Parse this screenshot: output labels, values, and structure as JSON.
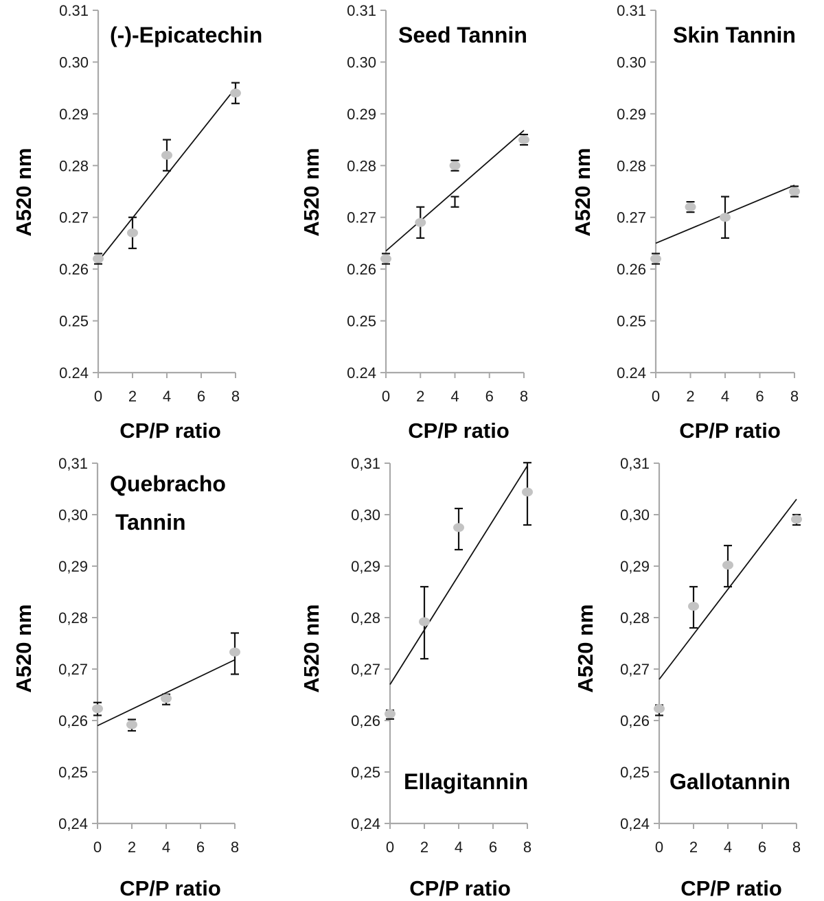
{
  "chart_data": [
    {
      "type": "scatter",
      "title_lines": [
        "(-)-Epicatechin"
      ],
      "xlabel": "CP/P ratio",
      "ylabel": "A520 nm",
      "x_tick_labels": [
        "0",
        "2",
        "4",
        "6",
        "8"
      ],
      "y_tick_labels": [
        "0.24",
        "0.25",
        "0.26",
        "0.27",
        "0.28",
        "0.29",
        "0.30",
        "0.31"
      ],
      "ylim": [
        0.24,
        0.31
      ],
      "xlim": [
        0,
        8
      ],
      "points": [
        {
          "x": 0,
          "y": 0.262,
          "err_low": 0.001,
          "err_high": 0.001
        },
        {
          "x": 2,
          "y": 0.267,
          "err_low": 0.003,
          "err_high": 0.003
        },
        {
          "x": 4,
          "y": 0.282,
          "err_low": 0.003,
          "err_high": 0.003
        },
        {
          "x": 8,
          "y": 0.294,
          "err_low": 0.002,
          "err_high": 0.002
        }
      ],
      "trendline": {
        "x": [
          0,
          8
        ],
        "y": [
          0.2615,
          0.295
        ]
      }
    },
    {
      "type": "scatter",
      "title_lines": [
        "Seed Tannin"
      ],
      "xlabel": "CP/P ratio",
      "ylabel": "A520 nm",
      "x_tick_labels": [
        "0",
        "2",
        "4",
        "6",
        "8"
      ],
      "y_tick_labels": [
        "0.24",
        "0.25",
        "0.26",
        "0.27",
        "0.28",
        "0.29",
        "0.30",
        "0.31"
      ],
      "ylim": [
        0.24,
        0.31
      ],
      "xlim": [
        0,
        8
      ],
      "points": [
        {
          "x": 0,
          "y": 0.262,
          "err_low": 0.001,
          "err_high": 0.001
        },
        {
          "x": 2,
          "y": 0.269,
          "err_low": 0.003,
          "err_high": 0.003
        },
        {
          "x": 4,
          "y": 0.28,
          "err_low": 0.001,
          "err_high": 0.001
        },
        {
          "x": 8,
          "y": 0.285,
          "err_low": 0.001,
          "err_high": 0.001
        }
      ],
      "extra_error_bars": [
        {
          "x": 4,
          "low": 0.272,
          "high": 0.274
        }
      ],
      "trendline": {
        "x": [
          0,
          8
        ],
        "y": [
          0.2635,
          0.2868
        ]
      }
    },
    {
      "type": "scatter",
      "title_lines": [
        "Skin Tannin"
      ],
      "xlabel": "CP/P ratio",
      "ylabel": "A520 nm",
      "x_tick_labels": [
        "0",
        "2",
        "4",
        "6",
        "8"
      ],
      "y_tick_labels": [
        "0.24",
        "0.25",
        "0.26",
        "0.27",
        "0.28",
        "0.29",
        "0.30",
        "0.31"
      ],
      "ylim": [
        0.24,
        0.31
      ],
      "xlim": [
        0,
        8
      ],
      "points": [
        {
          "x": 0,
          "y": 0.262,
          "err_low": 0.001,
          "err_high": 0.001
        },
        {
          "x": 2,
          "y": 0.272,
          "err_low": 0.001,
          "err_high": 0.001
        },
        {
          "x": 4,
          "y": 0.27,
          "err_low": 0.004,
          "err_high": 0.004
        },
        {
          "x": 8,
          "y": 0.275,
          "err_low": 0.001,
          "err_high": 0.001
        }
      ],
      "trendline": {
        "x": [
          0,
          8
        ],
        "y": [
          0.265,
          0.2762
        ]
      }
    },
    {
      "type": "scatter",
      "title_lines": [
        "Quebracho",
        "Tannin"
      ],
      "xlabel": "CP/P ratio",
      "ylabel": "A520 nm",
      "x_tick_labels": [
        "0",
        "2",
        "4",
        "6",
        "8"
      ],
      "y_tick_labels": [
        "0,24",
        "0,25",
        "0,26",
        "0,27",
        "0,28",
        "0,29",
        "0,30",
        "0,31"
      ],
      "ylim": [
        0.24,
        0.31
      ],
      "xlim": [
        0,
        8
      ],
      "points": [
        {
          "x": 0,
          "y": 0.2623,
          "err_low": 0.0013,
          "err_high": 0.0012
        },
        {
          "x": 2,
          "y": 0.2592,
          "err_low": 0.0012,
          "err_high": 0.001
        },
        {
          "x": 4,
          "y": 0.2643,
          "err_low": 0.0012,
          "err_high": 0.0008
        },
        {
          "x": 8,
          "y": 0.2733,
          "err_low": 0.0043,
          "err_high": 0.0037
        }
      ],
      "trendline": {
        "x": [
          0,
          8
        ],
        "y": [
          0.259,
          0.2718
        ]
      }
    },
    {
      "type": "scatter",
      "title_lines": [
        "Ellagitannin"
      ],
      "xlabel": "CP/P ratio",
      "ylabel": "A520 nm",
      "x_tick_labels": [
        "0",
        "2",
        "4",
        "6",
        "8"
      ],
      "y_tick_labels": [
        "0,24",
        "0,25",
        "0,26",
        "0,27",
        "0,28",
        "0,29",
        "0,30",
        "0,31"
      ],
      "ylim": [
        0.24,
        0.31
      ],
      "xlim": [
        0,
        8
      ],
      "points": [
        {
          "x": 0,
          "y": 0.2613,
          "err_low": 0.001,
          "err_high": 0.0007
        },
        {
          "x": 2,
          "y": 0.2792,
          "err_low": 0.0072,
          "err_high": 0.0068
        },
        {
          "x": 4,
          "y": 0.2975,
          "err_low": 0.0043,
          "err_high": 0.0037
        },
        {
          "x": 8,
          "y": 0.3044,
          "err_low": 0.0064,
          "err_high": 0.0057
        }
      ],
      "trendline": {
        "x": [
          0,
          8
        ],
        "y": [
          0.267,
          0.3095
        ]
      }
    },
    {
      "type": "scatter",
      "title_lines": [
        "Gallotannin"
      ],
      "xlabel": "CP/P ratio",
      "ylabel": "A520 nm",
      "x_tick_labels": [
        "0",
        "2",
        "4",
        "6",
        "8"
      ],
      "y_tick_labels": [
        "0,24",
        "0,25",
        "0,26",
        "0,27",
        "0,28",
        "0,29",
        "0,30",
        "0,31"
      ],
      "ylim": [
        0.24,
        0.31
      ],
      "xlim": [
        0,
        8
      ],
      "points": [
        {
          "x": 0,
          "y": 0.2623,
          "err_low": 0.0013,
          "err_high": 0.0007
        },
        {
          "x": 2,
          "y": 0.2822,
          "err_low": 0.0042,
          "err_high": 0.0038
        },
        {
          "x": 4,
          "y": 0.2902,
          "err_low": 0.0042,
          "err_high": 0.0038
        },
        {
          "x": 8,
          "y": 0.2991,
          "err_low": 0.0011,
          "err_high": 0.0009
        }
      ],
      "trendline": {
        "x": [
          0,
          8
        ],
        "y": [
          0.268,
          0.303
        ]
      }
    }
  ]
}
